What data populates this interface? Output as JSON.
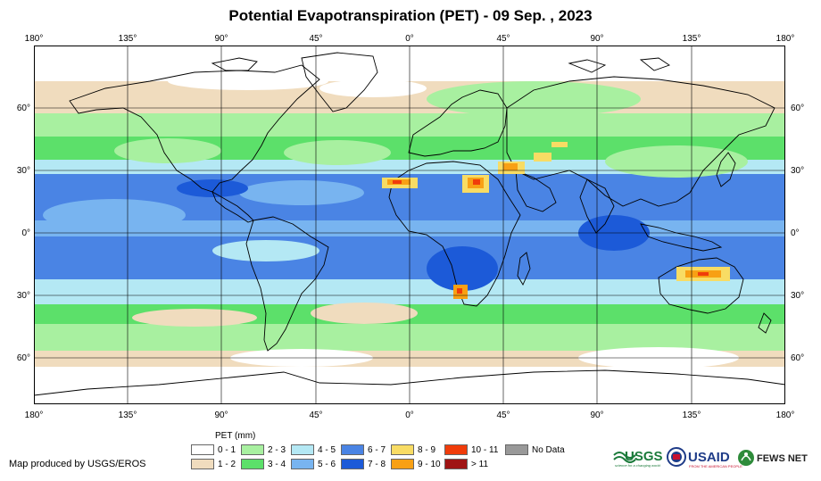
{
  "title": "Potential Evapotranspiration (PET) - 09 Sep. , 2023",
  "lon_ticks": [
    "180°",
    "135°",
    "90°",
    "45°",
    "0°",
    "45°",
    "90°",
    "135°",
    "180°"
  ],
  "lat_ticks_left": [
    "60°",
    "30°",
    "0°",
    "30°",
    "60°"
  ],
  "lat_ticks_right": [
    "60°",
    "30°",
    "0°",
    "30°",
    "60°"
  ],
  "legend": {
    "title": "PET (mm)",
    "items": [
      {
        "label": "0 - 1",
        "color": "#ffffff"
      },
      {
        "label": "1 - 2",
        "color": "#f0dcbe"
      },
      {
        "label": "2 - 3",
        "color": "#a8f0a0"
      },
      {
        "label": "3 - 4",
        "color": "#5ce06a"
      },
      {
        "label": "4 - 5",
        "color": "#b4e8f4"
      },
      {
        "label": "5 - 6",
        "color": "#78b4f0"
      },
      {
        "label": "6 - 7",
        "color": "#4a84e4"
      },
      {
        "label": "7 - 8",
        "color": "#1c5ad8"
      },
      {
        "label": "8 - 9",
        "color": "#f8dc64"
      },
      {
        "label": "9 - 10",
        "color": "#f8a014"
      },
      {
        "label": "10 - 11",
        "color": "#f03c0a"
      },
      {
        "label": "> 11",
        "color": "#a01414"
      },
      {
        "label": "No Data",
        "color": "#999999"
      }
    ]
  },
  "credit": "Map produced by USGS/EROS",
  "logos": {
    "usgs": "USGS",
    "usgs_tagline": "science for a changing world",
    "usaid": "USAID",
    "usaid_tagline": "FROM THE AMERICAN PEOPLE",
    "fewsnet": "FEWS NET"
  }
}
